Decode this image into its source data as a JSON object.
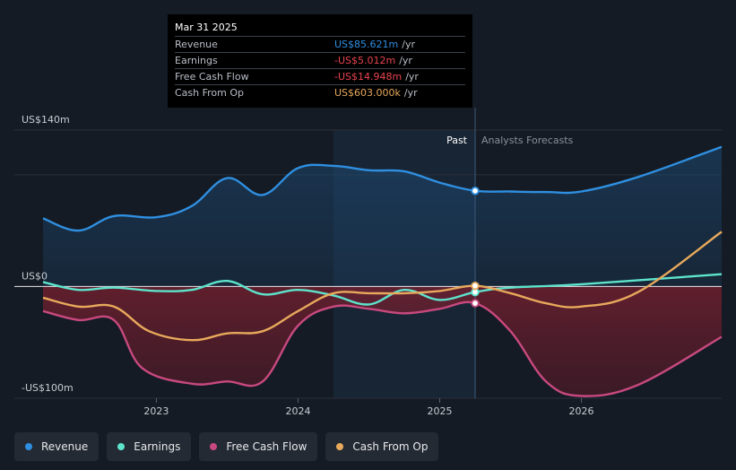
{
  "chart_data": {
    "type": "line",
    "x_range": [
      2022.2,
      2026.99
    ],
    "ylim": [
      -100,
      140
    ],
    "y_ticks": [
      {
        "value": 140,
        "label": "US$140m"
      },
      {
        "value": 0,
        "label": "US$0"
      },
      {
        "value": -100,
        "label": "-US$100m"
      }
    ],
    "x_ticks": [
      {
        "value": 2023,
        "label": "2023"
      },
      {
        "value": 2024,
        "label": "2024"
      },
      {
        "value": 2025,
        "label": "2025"
      },
      {
        "value": 2026,
        "label": "2026"
      }
    ],
    "past_label": "Past",
    "forecast_label": "Analysts Forecasts",
    "highlight_start": 2024.25,
    "divider": 2025.25,
    "series": [
      {
        "name": "Revenue",
        "color": "#2f8fe0",
        "points": [
          [
            2022.2,
            61
          ],
          [
            2022.45,
            50
          ],
          [
            2022.7,
            63
          ],
          [
            2023.0,
            62
          ],
          [
            2023.25,
            72
          ],
          [
            2023.5,
            97
          ],
          [
            2023.75,
            82
          ],
          [
            2024.0,
            106
          ],
          [
            2024.25,
            108
          ],
          [
            2024.5,
            104
          ],
          [
            2024.75,
            103
          ],
          [
            2025.0,
            93
          ],
          [
            2025.25,
            85.621
          ],
          [
            2025.5,
            85
          ],
          [
            2025.75,
            84.5
          ],
          [
            2026.0,
            85
          ],
          [
            2026.4,
            98
          ],
          [
            2026.99,
            125
          ]
        ]
      },
      {
        "name": "Earnings",
        "color": "#5ee3cc",
        "points": [
          [
            2022.2,
            4
          ],
          [
            2022.45,
            -3
          ],
          [
            2022.7,
            -1
          ],
          [
            2023.0,
            -4
          ],
          [
            2023.25,
            -3
          ],
          [
            2023.5,
            5
          ],
          [
            2023.75,
            -7
          ],
          [
            2024.0,
            -3
          ],
          [
            2024.25,
            -8
          ],
          [
            2024.5,
            -16
          ],
          [
            2024.75,
            -3
          ],
          [
            2025.0,
            -12
          ],
          [
            2025.25,
            -5.012
          ],
          [
            2025.5,
            -1
          ],
          [
            2026.0,
            2
          ],
          [
            2026.99,
            11
          ]
        ]
      },
      {
        "name": "Free Cash Flow",
        "color": "#c8497f",
        "points": [
          [
            2022.2,
            -22
          ],
          [
            2022.45,
            -30
          ],
          [
            2022.7,
            -30
          ],
          [
            2022.9,
            -73
          ],
          [
            2023.25,
            -87
          ],
          [
            2023.5,
            -85
          ],
          [
            2023.75,
            -85
          ],
          [
            2024.0,
            -35
          ],
          [
            2024.25,
            -18
          ],
          [
            2024.5,
            -20
          ],
          [
            2024.75,
            -24
          ],
          [
            2025.0,
            -20
          ],
          [
            2025.25,
            -14.948
          ],
          [
            2025.5,
            -40
          ],
          [
            2025.75,
            -85
          ],
          [
            2026.0,
            -98
          ],
          [
            2026.4,
            -88
          ],
          [
            2026.99,
            -45
          ]
        ]
      },
      {
        "name": "Cash From Op",
        "color": "#e8a95c",
        "points": [
          [
            2022.2,
            -10
          ],
          [
            2022.45,
            -18
          ],
          [
            2022.7,
            -18
          ],
          [
            2022.95,
            -40
          ],
          [
            2023.25,
            -48
          ],
          [
            2023.5,
            -42
          ],
          [
            2023.75,
            -40
          ],
          [
            2024.0,
            -22
          ],
          [
            2024.25,
            -6
          ],
          [
            2024.5,
            -6
          ],
          [
            2024.75,
            -6
          ],
          [
            2025.0,
            -4
          ],
          [
            2025.25,
            0.603
          ],
          [
            2025.5,
            -6
          ],
          [
            2025.75,
            -15
          ],
          [
            2026.0,
            -18
          ],
          [
            2026.4,
            -5
          ],
          [
            2026.99,
            49
          ]
        ]
      }
    ],
    "legend": [
      "Revenue",
      "Earnings",
      "Free Cash Flow",
      "Cash From Op"
    ]
  },
  "tooltip": {
    "date": "Mar 31 2025",
    "rows": [
      {
        "label": "Revenue",
        "value": "US$85.621m",
        "unit": "/yr",
        "color": "#2f8fe0"
      },
      {
        "label": "Earnings",
        "value": "-US$5.012m",
        "unit": "/yr",
        "color": "#e8444f"
      },
      {
        "label": "Free Cash Flow",
        "value": "-US$14.948m",
        "unit": "/yr",
        "color": "#e8444f"
      },
      {
        "label": "Cash From Op",
        "value": "US$603.000k",
        "unit": "/yr",
        "color": "#e8a95c"
      }
    ]
  },
  "legend": {
    "items": [
      {
        "label": "Revenue",
        "color": "#2f8fe0"
      },
      {
        "label": "Earnings",
        "color": "#5ee3cc"
      },
      {
        "label": "Free Cash Flow",
        "color": "#c8497f"
      },
      {
        "label": "Cash From Op",
        "color": "#e8a95c"
      }
    ]
  }
}
